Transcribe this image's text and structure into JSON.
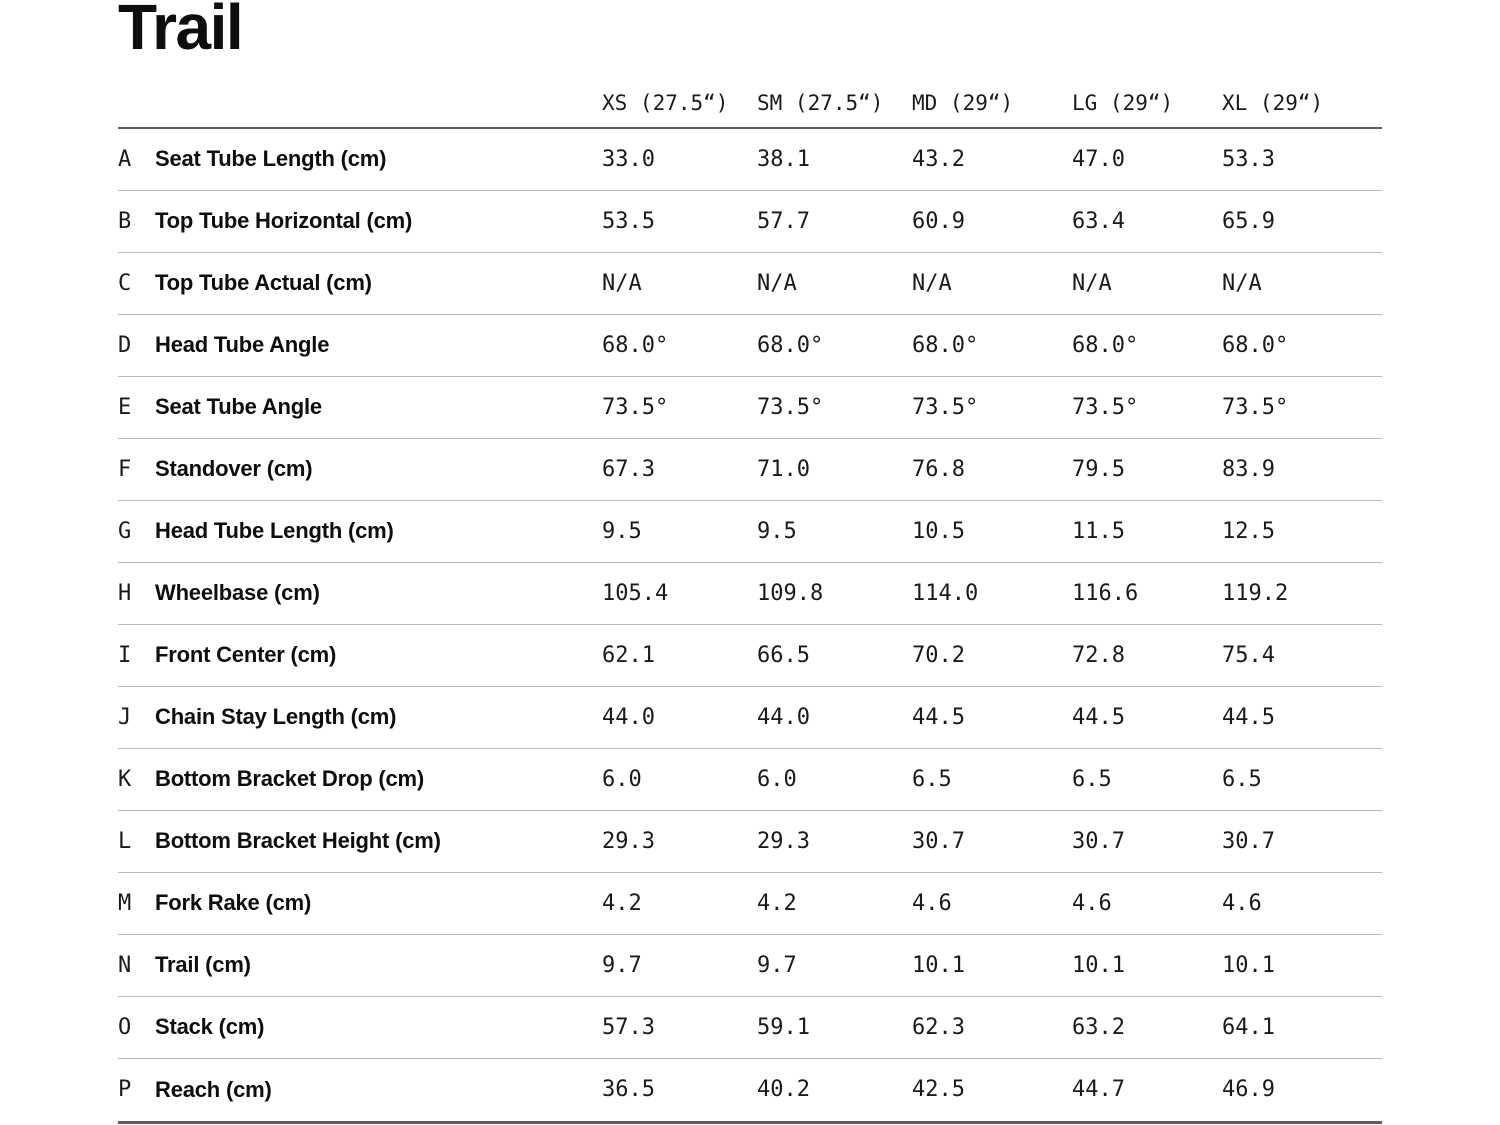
{
  "page": {
    "title": "Trail"
  },
  "table": {
    "columns": [
      "XS (27.5“)",
      "SM (27.5“)",
      "MD (29“)",
      "LG (29“)",
      "XL (29“)"
    ],
    "rows": [
      {
        "letter": "A",
        "label": "Seat Tube Length (cm)",
        "values": [
          "33.0",
          "38.1",
          "43.2",
          "47.0",
          "53.3"
        ]
      },
      {
        "letter": "B",
        "label": "Top Tube Horizontal (cm)",
        "values": [
          "53.5",
          "57.7",
          "60.9",
          "63.4",
          "65.9"
        ]
      },
      {
        "letter": "C",
        "label": "Top Tube Actual (cm)",
        "values": [
          "N/A",
          "N/A",
          "N/A",
          "N/A",
          "N/A"
        ]
      },
      {
        "letter": "D",
        "label": "Head Tube Angle",
        "values": [
          "68.0°",
          "68.0°",
          "68.0°",
          "68.0°",
          "68.0°"
        ]
      },
      {
        "letter": "E",
        "label": "Seat Tube Angle",
        "values": [
          "73.5°",
          "73.5°",
          "73.5°",
          "73.5°",
          "73.5°"
        ]
      },
      {
        "letter": "F",
        "label": "Standover (cm)",
        "values": [
          "67.3",
          "71.0",
          "76.8",
          "79.5",
          "83.9"
        ]
      },
      {
        "letter": "G",
        "label": "Head Tube Length (cm)",
        "values": [
          "9.5",
          "9.5",
          "10.5",
          "11.5",
          "12.5"
        ]
      },
      {
        "letter": "H",
        "label": "Wheelbase (cm)",
        "values": [
          "105.4",
          "109.8",
          "114.0",
          "116.6",
          "119.2"
        ]
      },
      {
        "letter": "I",
        "label": "Front Center (cm)",
        "values": [
          "62.1",
          "66.5",
          "70.2",
          "72.8",
          "75.4"
        ]
      },
      {
        "letter": "J",
        "label": "Chain Stay Length (cm)",
        "values": [
          "44.0",
          "44.0",
          "44.5",
          "44.5",
          "44.5"
        ]
      },
      {
        "letter": "K",
        "label": "Bottom Bracket Drop (cm)",
        "values": [
          "6.0",
          "6.0",
          "6.5",
          "6.5",
          "6.5"
        ]
      },
      {
        "letter": "L",
        "label": "Bottom Bracket Height (cm)",
        "values": [
          "29.3",
          "29.3",
          "30.7",
          "30.7",
          "30.7"
        ]
      },
      {
        "letter": "M",
        "label": "Fork Rake (cm)",
        "values": [
          "4.2",
          "4.2",
          "4.6",
          "4.6",
          "4.6"
        ]
      },
      {
        "letter": "N",
        "label": "Trail (cm)",
        "values": [
          "9.7",
          "9.7",
          "10.1",
          "10.1",
          "10.1"
        ]
      },
      {
        "letter": "O",
        "label": "Stack (cm)",
        "values": [
          "57.3",
          "59.1",
          "62.3",
          "63.2",
          "64.1"
        ]
      },
      {
        "letter": "P",
        "label": "Reach (cm)",
        "values": [
          "36.5",
          "40.2",
          "42.5",
          "44.7",
          "46.9"
        ]
      }
    ]
  }
}
